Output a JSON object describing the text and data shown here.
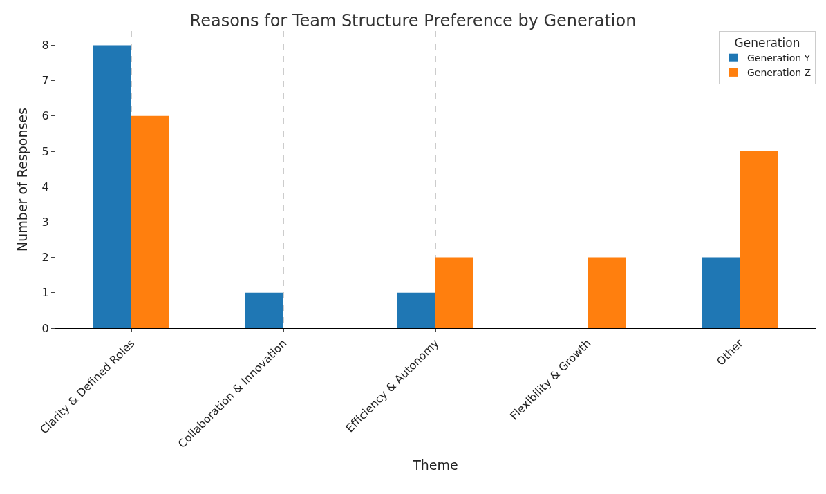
{
  "chart_data": {
    "type": "bar",
    "title": "Reasons for Team Structure Preference by Generation",
    "xlabel": "Theme",
    "ylabel": "Number of Responses",
    "legend_title": "Generation",
    "categories": [
      "Clarity & Defined Roles",
      "Collaboration & Innovation",
      "Efficiency & Autonomy",
      "Flexibility & Growth",
      "Other"
    ],
    "series": [
      {
        "name": "Generation Y",
        "color": "#1f77b4",
        "values": [
          8,
          1,
          1,
          0,
          2
        ]
      },
      {
        "name": "Generation Z",
        "color": "#ff7f0e",
        "values": [
          6,
          0,
          2,
          2,
          5
        ]
      }
    ],
    "ylim": [
      0,
      8.4
    ],
    "yticks": [
      0,
      1,
      2,
      3,
      4,
      5,
      6,
      7,
      8
    ],
    "grid": "x",
    "legend": "top right"
  }
}
